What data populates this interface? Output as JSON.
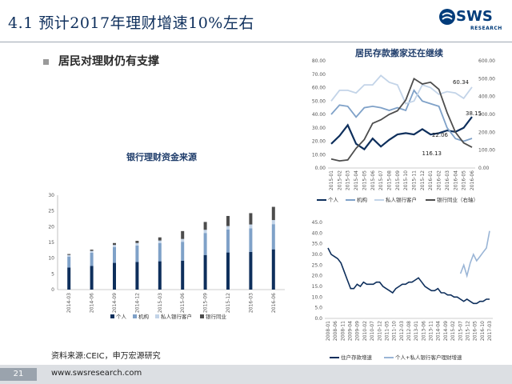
{
  "header": {
    "title": "4.1 预计2017年理财增速10%左右",
    "logo_text": "SWS",
    "logo_sub": "RESEARCH"
  },
  "bullet": "居民对理财仍有支撑",
  "source": "资料来源:CEIC，申万宏源研究",
  "footer": {
    "page": "21",
    "site": "www.swsresearch.com"
  },
  "chart_data": [
    {
      "type": "bar",
      "title": "银行理财资金来源",
      "categories": [
        "2014-03",
        "2014-06",
        "2014-09",
        "2014-12",
        "2015-03",
        "2015-06",
        "2015-09",
        "2015-12",
        "2016-03",
        "2016-06"
      ],
      "ylim": [
        0,
        30
      ],
      "yticks": [
        "0",
        "5",
        "10",
        "15",
        "20",
        "25",
        "30"
      ],
      "stacked": true,
      "series": [
        {
          "name": "个人",
          "color": "#0e2f5c",
          "values": [
            7,
            7.5,
            8.5,
            8.8,
            9,
            9.2,
            11,
            11.8,
            12,
            12.8
          ]
        },
        {
          "name": "机构",
          "color": "#7fa1c8",
          "values": [
            3.5,
            4.2,
            5,
            5.2,
            5.8,
            6,
            7,
            7.3,
            7.5,
            8
          ]
        },
        {
          "name": "私人银行客户",
          "color": "#c3d4e8",
          "values": [
            0.5,
            0.6,
            0.7,
            0.8,
            0.8,
            0.9,
            1,
            1.1,
            1.2,
            1.3
          ]
        },
        {
          "name": "银行同业",
          "color": "#4d4d4d",
          "values": [
            0.3,
            0.4,
            0.6,
            0.7,
            1,
            2.5,
            2.5,
            3.2,
            3.6,
            4.2
          ]
        }
      ],
      "legend": "bottom"
    },
    {
      "type": "line",
      "title": "居民存款搬家还在继续",
      "x": [
        "2015-01",
        "2015-02",
        "2015-03",
        "2015-04",
        "2015-05",
        "2015-06",
        "2015-07",
        "2015-08",
        "2015-09",
        "2015-10",
        "2015-11",
        "2015-12",
        "2016-01",
        "2016-02",
        "2016-03",
        "2016-04",
        "2016-05",
        "2016-06"
      ],
      "left_axis": {
        "ylim": [
          0,
          80
        ],
        "ticks": [
          "0.00",
          "10.00",
          "20.00",
          "30.00",
          "40.00",
          "50.00",
          "60.00",
          "70.00",
          "80.00"
        ]
      },
      "right_axis": {
        "ylim": [
          0,
          600
        ],
        "ticks": [
          "0.00",
          "100.00",
          "200.00",
          "300.00",
          "400.00",
          "500.00",
          "600.00"
        ]
      },
      "series": [
        {
          "name": "个人",
          "axis": "left",
          "color": "#0e2f5c",
          "values": [
            18,
            24,
            32,
            18,
            14,
            22,
            16,
            21,
            25,
            26,
            25,
            29,
            25,
            26,
            28,
            27,
            30,
            38.15
          ]
        },
        {
          "name": "机构",
          "axis": "left",
          "color": "#7fa1c8",
          "values": [
            40,
            47,
            46,
            38,
            45,
            46,
            45,
            43,
            45,
            43,
            58,
            50,
            48,
            46,
            30,
            22,
            20,
            22.06
          ]
        },
        {
          "name": "私人银行客户",
          "axis": "left",
          "color": "#c3d4e8",
          "values": [
            50,
            58,
            58,
            56,
            62,
            62,
            69,
            64,
            62,
            48,
            50,
            62,
            60,
            55,
            57,
            56,
            52,
            60.34
          ]
        },
        {
          "name": "银行同业（右轴）",
          "axis": "right",
          "color": "#4d4d4d",
          "values": [
            50,
            40,
            45,
            110,
            160,
            250,
            270,
            300,
            320,
            380,
            500,
            470,
            480,
            440,
            310,
            200,
            140,
            116.13
          ]
        }
      ],
      "annotations": [
        "60.34",
        "38.15",
        "22.06",
        "116.13"
      ],
      "legend": "bottom"
    },
    {
      "type": "line",
      "title": "",
      "x_ticks": [
        "2008-01",
        "2008-06",
        "2008-11",
        "2009-04",
        "2009-09",
        "2010-02",
        "2010-07",
        "2010-12",
        "2011-05",
        "2011-10",
        "2012-03",
        "2012-08",
        "2013-01",
        "2013-06",
        "2013-11",
        "2014-04",
        "2014-09",
        "2015-02",
        "2015-07",
        "2015-12",
        "2016-05",
        "2016-10",
        "2017-03"
      ],
      "ylim": [
        0,
        45
      ],
      "yticks": [
        "0.0",
        "5.0",
        "10.0",
        "15.0",
        "20.0",
        "25.0",
        "30.0",
        "35.0",
        "40.0",
        "45.0"
      ],
      "series": [
        {
          "name": "住户存款增速",
          "color": "#0e2f5c",
          "values": [
            33,
            30,
            29,
            28,
            26,
            22,
            18,
            14,
            14,
            16,
            15,
            17,
            16,
            16,
            16,
            17,
            17,
            15,
            14,
            13,
            12,
            14,
            15,
            16,
            16,
            17,
            17,
            18,
            19,
            17,
            15,
            14,
            13,
            13,
            14,
            12,
            12,
            11,
            11,
            10,
            10,
            9,
            8,
            9,
            8,
            7,
            7,
            8,
            8,
            9,
            9
          ]
        },
        {
          "name": "个人+私人银行客户理财增速",
          "color": "#9ab5d6",
          "values": [
            null,
            null,
            null,
            null,
            null,
            null,
            null,
            null,
            null,
            null,
            null,
            null,
            null,
            null,
            null,
            null,
            null,
            null,
            null,
            null,
            null,
            null,
            null,
            null,
            null,
            null,
            null,
            null,
            null,
            null,
            null,
            null,
            null,
            null,
            null,
            null,
            null,
            null,
            null,
            null,
            null,
            21,
            25,
            20,
            26,
            30,
            27,
            29,
            31,
            33,
            41
          ]
        }
      ],
      "legend": "bottom"
    }
  ]
}
